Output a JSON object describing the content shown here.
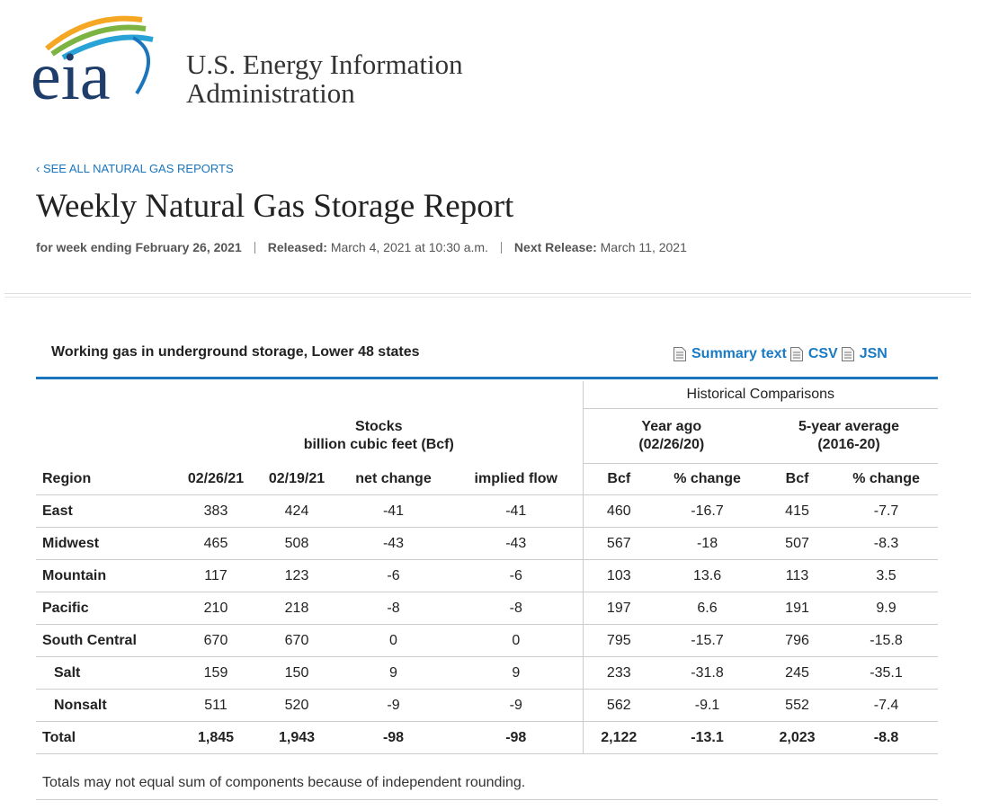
{
  "header": {
    "logo": "eia",
    "agency_line1": "U.S. Energy Information",
    "agency_line2": "Administration"
  },
  "back_link": "‹ SEE ALL NATURAL GAS REPORTS",
  "title": "Weekly Natural Gas Storage Report",
  "meta": {
    "week": "for week ending February 26, 2021",
    "released_label": "Released:",
    "released": "March 4, 2021 at 10:30 a.m.",
    "next_label": "Next Release:",
    "next": "March 11, 2021"
  },
  "table": {
    "caption": "Working gas in underground storage, Lower 48 states",
    "links": [
      "Summary text",
      "CSV",
      "JSN"
    ],
    "historical": "Historical Comparisons",
    "stocks": "Stocks",
    "stocks_unit": "billion cubic feet (Bcf)",
    "year_ago": "Year ago",
    "year_ago_date": "(02/26/20)",
    "five_year": "5-year average",
    "five_year_range": "(2016-20)",
    "columns": [
      "Region",
      "02/26/21",
      "02/19/21",
      "net change",
      "implied flow",
      "Bcf",
      "% change",
      "Bcf",
      "% change"
    ],
    "rows": [
      [
        "East",
        383,
        424,
        -41,
        -41,
        460,
        -16.7,
        415,
        -7.7
      ],
      [
        "Midwest",
        465,
        508,
        -43,
        -43,
        567,
        -18.0,
        507,
        -8.3
      ],
      [
        "Mountain",
        117,
        123,
        -6,
        -6,
        103,
        13.6,
        113,
        3.5
      ],
      [
        "Pacific",
        210,
        218,
        -8,
        -8,
        197,
        6.6,
        191,
        9.9
      ],
      [
        "South Central",
        670,
        670,
        0,
        0,
        795,
        -15.7,
        796,
        -15.8
      ],
      [
        "Salt",
        159,
        150,
        9,
        9,
        233,
        -31.8,
        245,
        -35.1
      ],
      [
        "Nonsalt",
        511,
        520,
        -9,
        -9,
        562,
        -9.1,
        552,
        -7.4
      ],
      [
        "Total",
        "1,845",
        "1,943",
        -98,
        -98,
        "2,122",
        -13.1,
        "2,023",
        -8.8
      ]
    ],
    "footnote": "Totals may not equal sum of components because of independent rounding."
  }
}
